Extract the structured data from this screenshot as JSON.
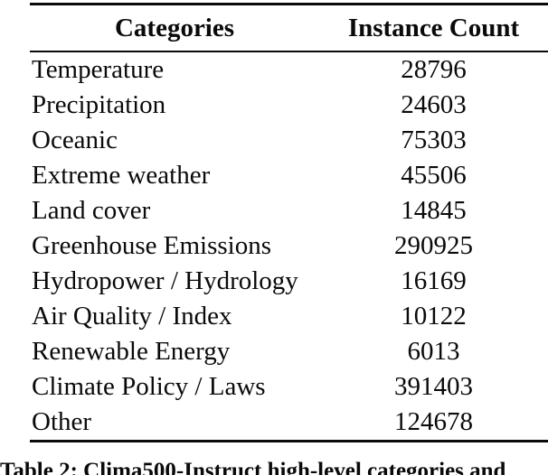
{
  "page": {
    "background": "#ffffff",
    "text_color": "#0a0a0a",
    "rule_color": "#0a0a0a"
  },
  "table": {
    "headers": {
      "categories": "Categories",
      "instance_count": "Instance Count"
    },
    "rows": [
      {
        "category": "Temperature",
        "count": "28796"
      },
      {
        "category": "Precipitation",
        "count": "24603"
      },
      {
        "category": "Oceanic",
        "count": "75303"
      },
      {
        "category": "Extreme weather",
        "count": "45506"
      },
      {
        "category": "Land cover",
        "count": "14845"
      },
      {
        "category": "Greenhouse Emissions",
        "count": "290925"
      },
      {
        "category": "Hydropower / Hydrology",
        "count": "16169"
      },
      {
        "category": "Air Quality / Index",
        "count": "10122"
      },
      {
        "category": "Renewable Energy",
        "count": "6013"
      },
      {
        "category": "Climate Policy / Laws",
        "count": "391403"
      },
      {
        "category": "Other",
        "count": "124678"
      }
    ]
  },
  "caption": {
    "text": "Table 2: Clima500-Instruct high-level categories and"
  }
}
